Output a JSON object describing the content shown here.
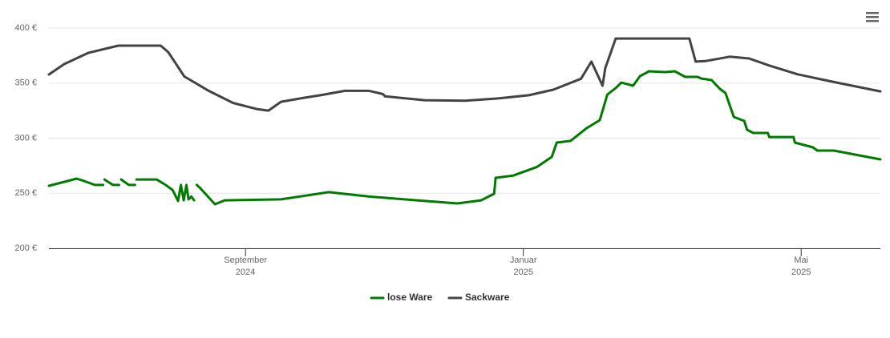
{
  "chart_data": {
    "type": "line",
    "xlim": [
      -2.83,
      9.14
    ],
    "xticks": [
      {
        "value": 0,
        "label": "September 2024"
      },
      {
        "value": 4,
        "label": "Januar 2025"
      },
      {
        "value": 8,
        "label": "Mai 2025"
      }
    ],
    "ylim": [
      200,
      400
    ],
    "yticks": [
      {
        "value": 200,
        "label": "200 €"
      },
      {
        "value": 250,
        "label": "250 €"
      },
      {
        "value": 300,
        "label": "300 €"
      },
      {
        "value": 350,
        "label": "350 €"
      },
      {
        "value": 400,
        "label": "400 €"
      }
    ],
    "grid": true,
    "legend": "bottom",
    "series": [
      {
        "name": "lose Ware",
        "color": "#007a00",
        "x": [
          -2.83,
          -2.43,
          -2.32,
          -2.17,
          -2.05,
          null,
          -2.03,
          -1.91,
          -1.82,
          null,
          -1.79,
          -1.68,
          -1.59,
          null,
          -1.57,
          -1.28,
          -1.16,
          -1.05,
          -0.97,
          -0.93,
          -0.89,
          -0.85,
          -0.82,
          -0.78,
          -0.74,
          null,
          -0.7,
          -0.65,
          -0.44,
          -0.3,
          0.51,
          1.2,
          1.78,
          2.47,
          3.05,
          3.39,
          3.58,
          3.6,
          3.85,
          4.2,
          4.41,
          4.48,
          4.68,
          4.91,
          5.1,
          5.21,
          5.33,
          5.41,
          5.58,
          5.68,
          5.81,
          6.04,
          6.18,
          6.33,
          6.51,
          6.56,
          6.71,
          6.83,
          6.91,
          7.03,
          7.18,
          7.22,
          7.31,
          7.52,
          7.54,
          7.89,
          7.91,
          8.17,
          8.23,
          8.47,
          9.14
        ],
        "values": [
          256.7,
          263.3,
          261,
          257.5,
          257.5,
          null,
          262.5,
          257.5,
          257.5,
          null,
          262.5,
          257.5,
          257.5,
          null,
          262.5,
          262.5,
          258,
          253,
          243,
          257.5,
          243.6,
          257.5,
          244.4,
          247,
          243.6,
          null,
          257.5,
          254.5,
          240,
          243.6,
          244.4,
          251,
          247,
          243.6,
          240.7,
          243.6,
          249.5,
          264,
          266,
          274,
          283,
          296,
          297.5,
          309,
          316.4,
          339.6,
          345.5,
          350.5,
          347.6,
          356.4,
          360.7,
          360,
          360.7,
          355.6,
          355.6,
          354.2,
          352.7,
          344.7,
          341,
          319.3,
          315.6,
          307.6,
          304.7,
          304.7,
          301,
          301,
          296,
          291.6,
          288.7,
          288.7,
          280.7
        ]
      },
      {
        "name": "Sackware",
        "color": "#434343",
        "x": [
          -2.83,
          -2.61,
          -2.26,
          -1.83,
          -1.22,
          -1.11,
          -0.88,
          -0.53,
          -0.18,
          0.16,
          0.33,
          0.51,
          0.85,
          1.08,
          1.43,
          1.78,
          1.98,
          2.01,
          2.58,
          3.16,
          3.62,
          4.08,
          4.43,
          4.83,
          4.98,
          5.14,
          5.18,
          5.33,
          6.39,
          6.48,
          6.62,
          6.97,
          7.25,
          7.54,
          7.95,
          8.47,
          9.14
        ],
        "values": [
          357.8,
          367.3,
          377.5,
          384,
          384,
          378,
          356,
          343,
          332,
          326.5,
          325,
          333,
          336.7,
          339,
          343,
          343,
          340,
          338,
          334.5,
          334,
          336,
          339,
          344,
          354,
          369.5,
          347.6,
          363.6,
          390.5,
          390.5,
          369.5,
          370,
          374,
          372.4,
          366,
          358,
          351,
          342.5
        ]
      }
    ]
  }
}
